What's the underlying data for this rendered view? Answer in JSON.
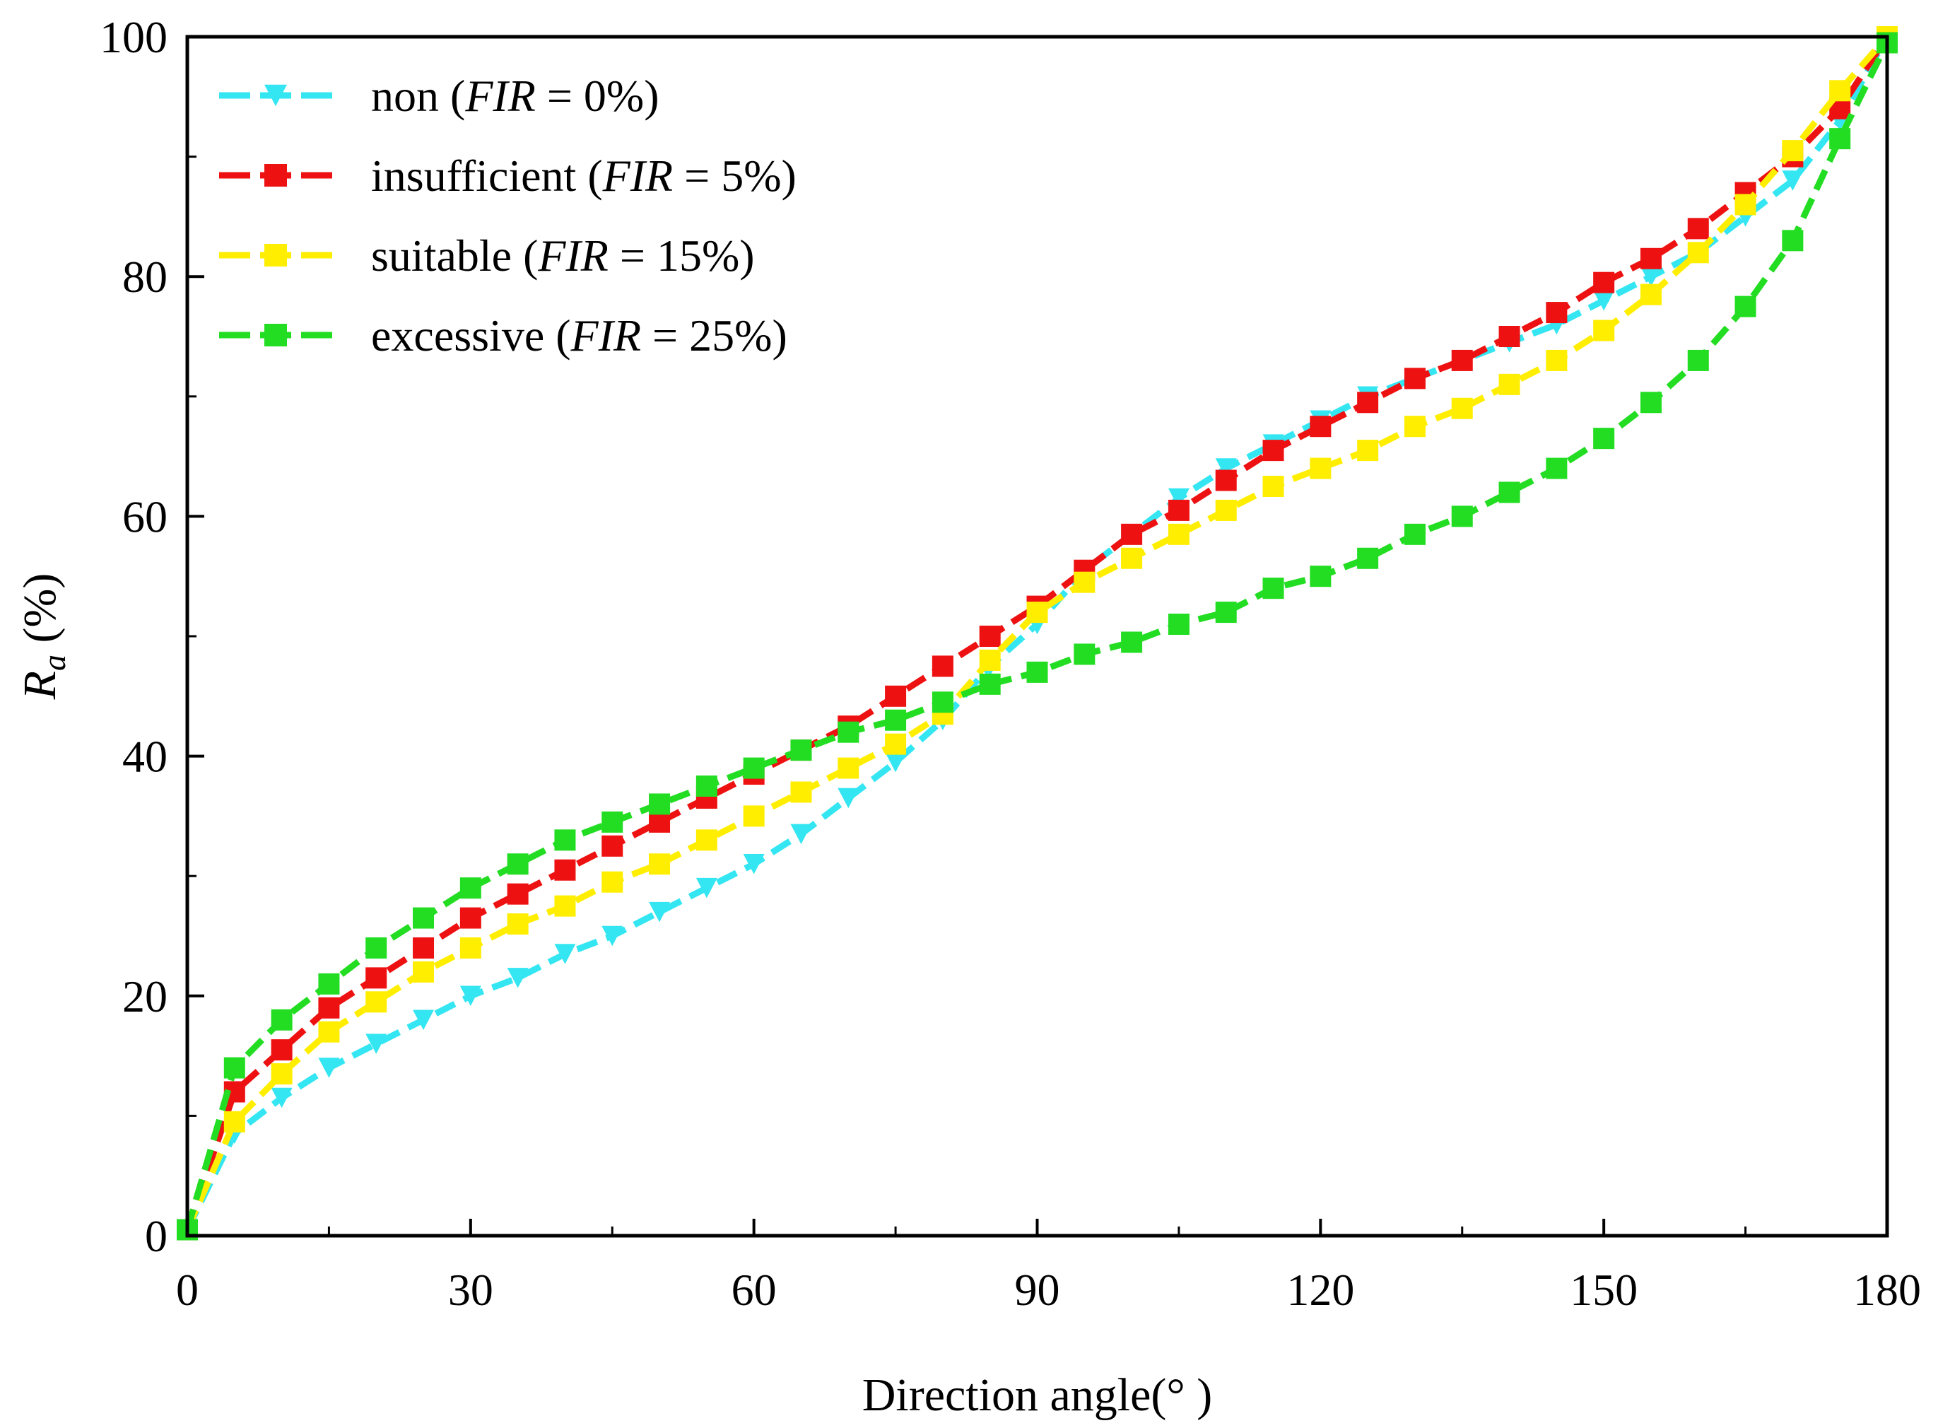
{
  "chart_data": {
    "type": "line",
    "title": "",
    "xlabel": "Direction angle(° )",
    "ylabel_main": "R",
    "ylabel_sub": "a",
    "ylabel_suffix": " (%)",
    "xlim": [
      0,
      180
    ],
    "ylim": [
      0,
      100
    ],
    "x_ticks": [
      0,
      30,
      60,
      90,
      120,
      150,
      180
    ],
    "y_ticks": [
      0,
      20,
      40,
      60,
      80,
      100
    ],
    "legend_position": "top-left",
    "x": [
      0,
      5,
      10,
      15,
      20,
      25,
      30,
      35,
      40,
      45,
      50,
      55,
      60,
      65,
      70,
      75,
      80,
      85,
      90,
      95,
      100,
      105,
      110,
      115,
      120,
      125,
      130,
      135,
      140,
      145,
      150,
      155,
      160,
      165,
      170,
      175,
      180
    ],
    "series": [
      {
        "name": "non",
        "legend_prefix": "non (",
        "legend_italic": "FIR",
        "legend_suffix": " = 0%)",
        "color": "#33e6f2",
        "marker": "triangle-down",
        "values": [
          0.5,
          8.5,
          11.5,
          14,
          16,
          18,
          20,
          21.5,
          23.5,
          25,
          27,
          29,
          31,
          33.5,
          36.5,
          39.5,
          43,
          47.5,
          51,
          55.5,
          58.5,
          61.5,
          64,
          66,
          68,
          70,
          71.5,
          73,
          74.5,
          76,
          78,
          80,
          82,
          85,
          88,
          93,
          100
        ]
      },
      {
        "name": "insufficient",
        "legend_prefix": "insufficient (",
        "legend_italic": "FIR",
        "legend_suffix": " = 5%)",
        "color": "#ee1111",
        "marker": "square",
        "values": [
          0.5,
          12,
          15.5,
          19,
          21.5,
          24,
          26.5,
          28.5,
          30.5,
          32.5,
          34.5,
          36.5,
          38.5,
          40.5,
          42.5,
          45,
          47.5,
          50,
          52.5,
          55.5,
          58.5,
          60.5,
          63,
          65.5,
          67.5,
          69.5,
          71.5,
          73,
          75,
          77,
          79.5,
          81.5,
          84,
          87,
          90,
          94,
          100
        ]
      },
      {
        "name": "suitable",
        "legend_prefix": "suitable (",
        "legend_italic": "FIR",
        "legend_suffix": " = 15%)",
        "color": "#ffee00",
        "marker": "square",
        "values": [
          0.5,
          9.5,
          13.5,
          17,
          19.5,
          22,
          24,
          26,
          27.5,
          29.5,
          31,
          33,
          35,
          37,
          39,
          41,
          43.5,
          48,
          52,
          54.5,
          56.5,
          58.5,
          60.5,
          62.5,
          64,
          65.5,
          67.5,
          69,
          71,
          73,
          75.5,
          78.5,
          82,
          86,
          90.5,
          95.5,
          100
        ]
      },
      {
        "name": "excessive",
        "legend_prefix": "excessive (",
        "legend_italic": "FIR",
        "legend_suffix": " = 25%)",
        "color": "#22dd22",
        "marker": "square",
        "values": [
          0.5,
          14,
          18,
          21,
          24,
          26.5,
          29,
          31,
          33,
          34.5,
          36,
          37.5,
          39,
          40.5,
          42,
          43,
          44.5,
          46,
          47,
          48.5,
          49.5,
          51,
          52,
          54,
          55,
          56.5,
          58.5,
          60,
          62,
          64,
          66.5,
          69.5,
          73,
          77.5,
          83,
          91.5,
          99.5
        ]
      }
    ]
  }
}
